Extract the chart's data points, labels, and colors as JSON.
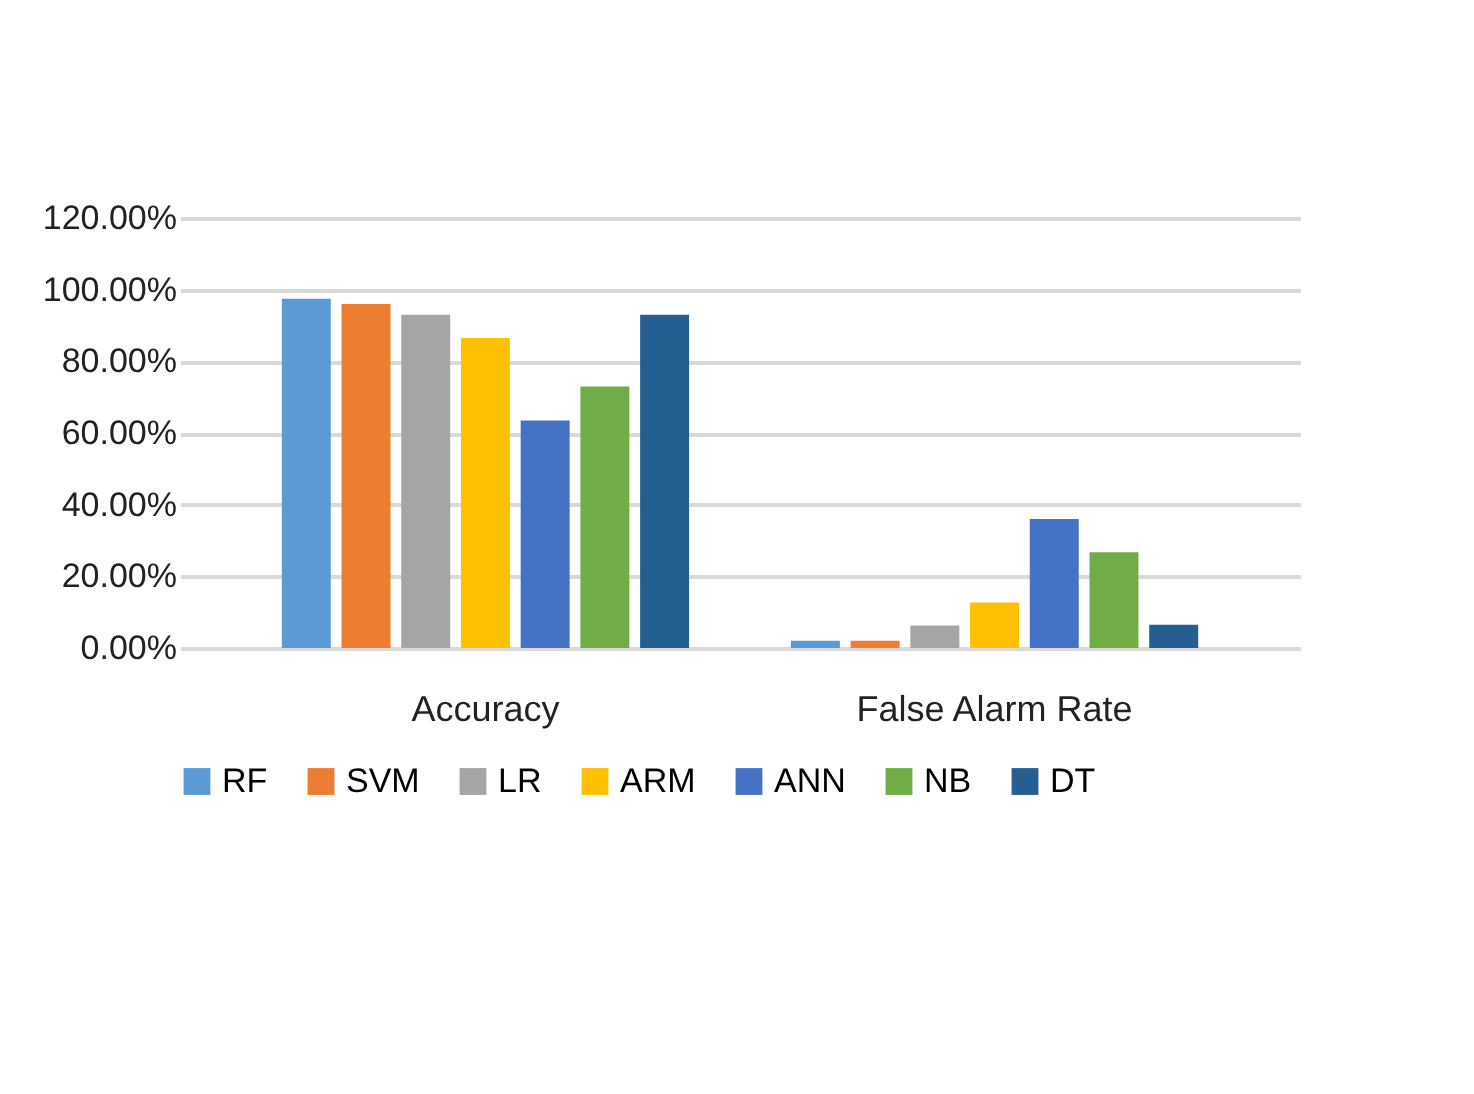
{
  "chart_data": {
    "type": "bar",
    "categories": [
      "Accuracy",
      "False Alarm Rate"
    ],
    "series": [
      {
        "name": "RF",
        "color": "#5b9bd5",
        "values": [
          97.5,
          2
        ]
      },
      {
        "name": "SVM",
        "color": "#ed7d31",
        "values": [
          96,
          2
        ]
      },
      {
        "name": "LR",
        "color": "#a5a5a5",
        "values": [
          93,
          6.3
        ]
      },
      {
        "name": "ARM",
        "color": "#ffc000",
        "values": [
          86.5,
          12.7
        ]
      },
      {
        "name": "ANN",
        "color": "#4472c4",
        "values": [
          63.5,
          36
        ]
      },
      {
        "name": "NB",
        "color": "#70ad47",
        "values": [
          73,
          26.7
        ]
      },
      {
        "name": "DT",
        "color": "#255e91",
        "values": [
          93,
          6.5
        ]
      }
    ],
    "ylim": [
      0,
      120
    ],
    "yticks": [
      {
        "value": 0,
        "label": "0.00%"
      },
      {
        "value": 20,
        "label": "20.00%"
      },
      {
        "value": 40,
        "label": "40.00%"
      },
      {
        "value": 60,
        "label": "60.00%"
      },
      {
        "value": 80,
        "label": "80.00%"
      },
      {
        "value": 100,
        "label": "100.00%"
      },
      {
        "value": 120,
        "label": "120.00%"
      }
    ],
    "grid": "y",
    "legend": "bottom"
  }
}
